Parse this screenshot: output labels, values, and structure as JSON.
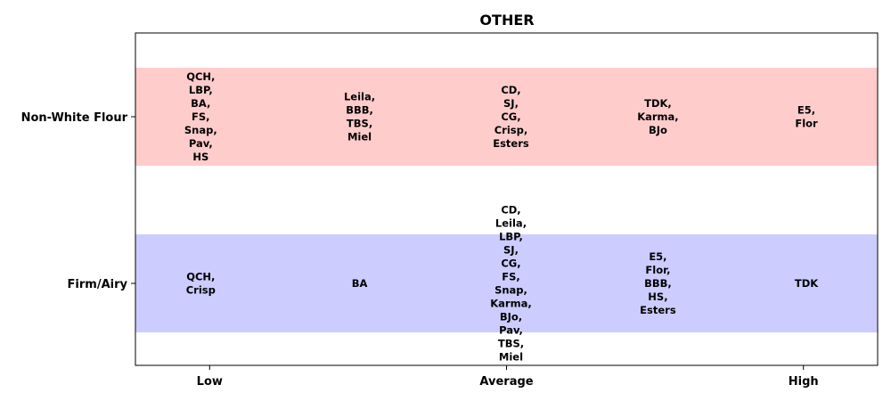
{
  "chart_data": {
    "type": "table",
    "title": "OTHER",
    "xlabel": "",
    "ylabel": "",
    "x_ticks": [
      {
        "label": "Low",
        "value": 0
      },
      {
        "label": "Average",
        "value": 2
      },
      {
        "label": "High",
        "value": 4
      }
    ],
    "xlim": [
      -0.5,
      4.5
    ],
    "rows": [
      {
        "name": "Non-White Flour",
        "color": "#ffcccc",
        "cells": [
          {
            "x": 0,
            "items": [
              "QCH",
              "LBP",
              "BA",
              "FS",
              "Snap",
              "Pav",
              "HS"
            ]
          },
          {
            "x": 1,
            "items": [
              "Leila",
              "BBB",
              "TBS",
              "Miel"
            ]
          },
          {
            "x": 2,
            "items": [
              "CD",
              "SJ",
              "CG",
              "Crisp",
              "Esters"
            ]
          },
          {
            "x": 3,
            "items": [
              "TDK",
              "Karma",
              "BJo"
            ]
          },
          {
            "x": 4,
            "items": [
              "E5",
              "Flor"
            ]
          }
        ]
      },
      {
        "name": "Firm/Airy",
        "color": "#ccccff",
        "cells": [
          {
            "x": 0,
            "items": [
              "QCH",
              "Crisp"
            ]
          },
          {
            "x": 1,
            "items": [
              "BA"
            ]
          },
          {
            "x": 2,
            "items": [
              "CD",
              "Leila",
              "LBP",
              "SJ",
              "CG",
              "FS",
              "Snap",
              "Karma",
              "BJo",
              "Pav",
              "TBS",
              "Miel"
            ]
          },
          {
            "x": 3,
            "items": [
              "E5",
              "Flor",
              "BBB",
              "HS",
              "Esters"
            ]
          },
          {
            "x": 4,
            "items": [
              "TDK"
            ]
          }
        ]
      }
    ],
    "grid": false,
    "legend": "none"
  }
}
